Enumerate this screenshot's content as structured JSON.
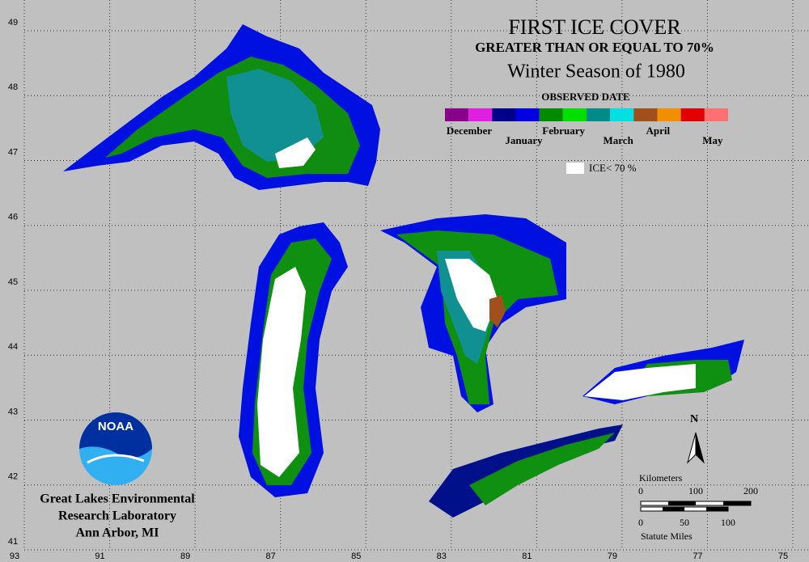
{
  "map": {
    "title": "FIRST ICE COVER",
    "subtitle": "GREATER THAN OR EQUAL TO 70%",
    "season": "Winter Season of 1980",
    "legend": {
      "title": "OBSERVED DATE",
      "months": [
        {
          "label": "December",
          "colors": [
            "#8b008b",
            "#e020e0"
          ]
        },
        {
          "label": "January",
          "colors": [
            "#00008b",
            "#0000e0"
          ]
        },
        {
          "label": "February",
          "colors": [
            "#008b00",
            "#00e000"
          ]
        },
        {
          "label": "March",
          "colors": [
            "#008b8b",
            "#00e0e0"
          ]
        },
        {
          "label": "April",
          "colors": [
            "#a0501a",
            "#f09000"
          ]
        },
        {
          "label": "May",
          "colors": [
            "#e00000",
            "#ff7070"
          ]
        }
      ],
      "ice_label": "ICE< 70 %"
    },
    "longitudes": [
      93,
      91,
      89,
      87,
      85,
      83,
      81,
      79,
      77,
      75
    ],
    "latitudes": [
      41,
      42,
      43,
      44,
      45,
      46,
      47,
      48,
      49
    ],
    "scale": {
      "km_title": "Kilometers",
      "km_ticks": [
        0,
        100,
        200
      ],
      "mi_ticks": [
        0,
        50,
        100
      ],
      "mi_title": "Statute Miles"
    },
    "north": "N",
    "logo": "NOAA",
    "credit": [
      "Great Lakes Environmental",
      "Research Laboratory",
      "Ann Arbor, MI"
    ]
  }
}
